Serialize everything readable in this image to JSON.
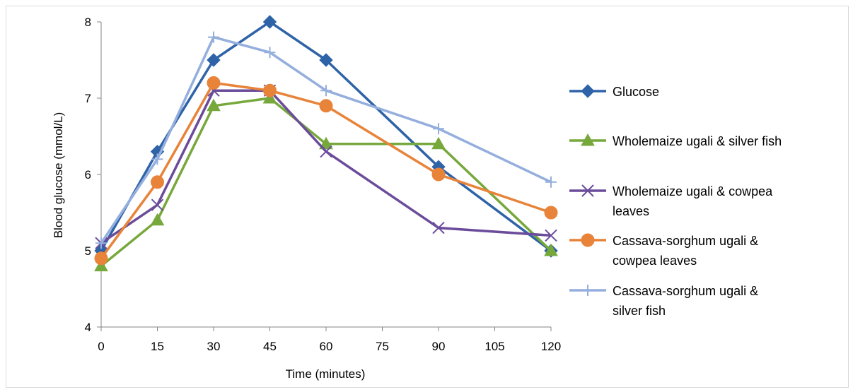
{
  "chart_data": {
    "type": "line",
    "xlabel": "Time (minutes)",
    "ylabel": "Blood glucose (mmol/L)",
    "xlim": [
      0,
      120
    ],
    "ylim": [
      4,
      8
    ],
    "xticks": [
      0,
      15,
      30,
      45,
      60,
      75,
      90,
      105,
      120
    ],
    "yticks": [
      4,
      5,
      6,
      7,
      8
    ],
    "grid": false,
    "legend_position": "right",
    "x": [
      0,
      15,
      30,
      45,
      60,
      90,
      120
    ],
    "series": [
      {
        "name": "Glucose",
        "legend_lines": [
          "Glucose"
        ],
        "marker": "diamond",
        "color": "#2E63A8",
        "values": [
          5.0,
          6.3,
          7.5,
          8.0,
          7.5,
          6.1,
          5.0
        ]
      },
      {
        "name": "Wholemaize ugali & silver fish",
        "legend_lines": [
          "Wholemaize ugali & silver fish"
        ],
        "marker": "triangle",
        "color": "#77A83C",
        "values": [
          4.8,
          5.4,
          6.9,
          7.0,
          6.4,
          6.4,
          5.0
        ]
      },
      {
        "name": "Wholemaize ugali & cowpea leaves",
        "legend_lines": [
          "Wholemaize ugali & cowpea",
          "leaves"
        ],
        "marker": "x",
        "color": "#6B4C9A",
        "values": [
          5.1,
          5.6,
          7.1,
          7.1,
          6.3,
          5.3,
          5.2
        ]
      },
      {
        "name": "Cassava-sorghum ugali & cowpea leaves",
        "legend_lines": [
          "Cassava-sorghum ugali &",
          "cowpea leaves"
        ],
        "marker": "circle",
        "color": "#E8833A",
        "values": [
          4.9,
          5.9,
          7.2,
          7.1,
          6.9,
          6.0,
          5.5
        ]
      },
      {
        "name": "Cassava-sorghum ugali & silver fish",
        "legend_lines": [
          "Cassava-sorghum ugali &",
          "silver fish"
        ],
        "marker": "plus",
        "color": "#94AEDD",
        "values": [
          5.1,
          6.2,
          7.8,
          7.6,
          7.1,
          6.6,
          5.9
        ]
      }
    ]
  }
}
